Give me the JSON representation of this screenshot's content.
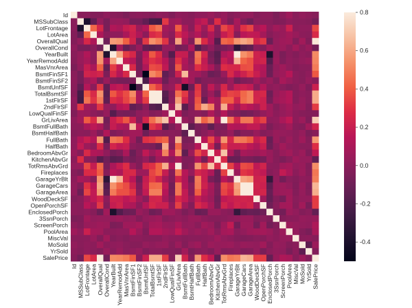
{
  "chart_data": {
    "type": "heatmap",
    "title": "",
    "xlabel": "",
    "ylabel": "",
    "colormap": "rocket",
    "color_range": [
      -0.5,
      0.8
    ],
    "colorbar_ticks": [
      "0.8",
      "0.6",
      "0.4",
      "0.2",
      "0.0",
      "-0.2",
      "-0.4"
    ],
    "colorbar_tick_values": [
      0.8,
      0.6,
      0.4,
      0.2,
      0.0,
      -0.2,
      -0.4
    ],
    "labels": [
      "Id",
      "MSSubClass",
      "LotFrontage",
      "LotArea",
      "OverallQual",
      "OverallCond",
      "YearBuilt",
      "YearRemodAdd",
      "MasVnrArea",
      "BsmtFinSF1",
      "BsmtFinSF2",
      "BsmtUnfSF",
      "TotalBsmtSF",
      "1stFlrSF",
      "2ndFlrSF",
      "LowQualFinSF",
      "GrLivArea",
      "BsmtFullBath",
      "BsmtHalfBath",
      "FullBath",
      "HalfBath",
      "BedroomAbvGr",
      "KitchenAbvGr",
      "TotRmsAbvGrd",
      "Fireplaces",
      "GarageYrBlt",
      "GarageCars",
      "GarageArea",
      "WoodDeckSF",
      "OpenPorchSF",
      "EnclosedPorch",
      "3SsnPorch",
      "ScreenPorch",
      "PoolArea",
      "MiscVal",
      "MoSold",
      "YrSold",
      "SalePrice"
    ],
    "symmetric": true,
    "upper_triangle": [
      [
        1,
        -0.01,
        -0.01,
        -0.03,
        -0.03,
        0.01,
        -0.01,
        -0.02,
        -0.05,
        -0.01,
        0.0,
        -0.01,
        -0.02,
        0.01,
        0.0,
        -0.04,
        0.01,
        0.0,
        -0.02,
        0.01,
        0.01,
        0.04,
        0.0,
        0.03,
        -0.02,
        0.0,
        0.02,
        0.02,
        -0.03,
        0.0,
        0.0,
        -0.05,
        0.0,
        0.06,
        -0.01,
        0.02,
        0.0,
        -0.02
      ],
      [
        1,
        -0.39,
        -0.14,
        0.03,
        -0.06,
        0.03,
        0.04,
        0.02,
        -0.07,
        -0.07,
        -0.14,
        -0.24,
        -0.25,
        0.31,
        0.05,
        0.07,
        0.0,
        0.0,
        0.13,
        0.18,
        -0.02,
        0.28,
        0.04,
        -0.05,
        0.09,
        -0.04,
        -0.1,
        -0.01,
        -0.01,
        -0.01,
        -0.04,
        -0.03,
        0.01,
        -0.01,
        -0.01,
        -0.02,
        -0.08
      ],
      [
        1,
        0.43,
        0.25,
        -0.06,
        0.12,
        0.09,
        0.19,
        0.23,
        0.05,
        0.13,
        0.39,
        0.46,
        0.08,
        0.04,
        0.4,
        0.1,
        -0.01,
        0.2,
        0.05,
        0.26,
        -0.01,
        0.35,
        0.27,
        0.07,
        0.29,
        0.34,
        0.09,
        0.15,
        0.01,
        0.07,
        0.04,
        0.21,
        0.0,
        0.01,
        0.01,
        0.35
      ],
      [
        1,
        0.11,
        -0.01,
        0.01,
        0.01,
        0.1,
        0.21,
        0.11,
        0.0,
        0.26,
        0.3,
        0.05,
        0.0,
        0.26,
        0.16,
        0.05,
        0.13,
        0.01,
        0.12,
        -0.02,
        0.19,
        0.27,
        -0.02,
        0.15,
        0.18,
        0.17,
        0.08,
        -0.02,
        0.02,
        0.04,
        0.08,
        0.04,
        0.0,
        -0.01,
        0.26
      ],
      [
        1,
        -0.09,
        0.57,
        0.55,
        0.41,
        0.24,
        -0.06,
        0.31,
        0.54,
        0.48,
        0.3,
        -0.03,
        0.59,
        0.11,
        -0.04,
        0.55,
        0.27,
        0.1,
        -0.18,
        0.43,
        0.4,
        0.55,
        0.6,
        0.56,
        0.24,
        0.31,
        -0.11,
        0.03,
        0.06,
        0.07,
        -0.03,
        0.07,
        -0.03,
        0.79
      ],
      [
        1,
        -0.38,
        0.07,
        -0.13,
        -0.05,
        0.04,
        -0.14,
        -0.17,
        -0.14,
        0.03,
        0.03,
        -0.08,
        -0.05,
        0.12,
        -0.19,
        -0.06,
        0.01,
        -0.09,
        -0.06,
        -0.02,
        -0.32,
        -0.19,
        -0.15,
        0.0,
        -0.03,
        0.07,
        0.03,
        0.05,
        0.0,
        0.07,
        0.0,
        0.04,
        -0.08
      ],
      [
        1,
        0.59,
        0.32,
        0.25,
        -0.05,
        0.15,
        0.39,
        0.28,
        0.01,
        -0.18,
        0.2,
        0.19,
        -0.04,
        0.47,
        0.24,
        -0.07,
        -0.17,
        0.1,
        0.15,
        0.83,
        0.54,
        0.48,
        0.22,
        0.19,
        -0.39,
        0.03,
        -0.05,
        0.0,
        -0.03,
        0.01,
        -0.01,
        0.52
      ],
      [
        1,
        0.18,
        0.13,
        -0.07,
        0.18,
        0.29,
        0.24,
        0.14,
        -0.06,
        0.29,
        0.12,
        -0.01,
        0.44,
        0.18,
        -0.04,
        -0.15,
        0.19,
        0.11,
        0.64,
        0.42,
        0.37,
        0.21,
        0.23,
        -0.19,
        0.05,
        -0.04,
        0.01,
        -0.01,
        0.02,
        0.04,
        0.51
      ],
      [
        1,
        0.26,
        -0.07,
        0.11,
        0.36,
        0.34,
        0.17,
        -0.07,
        0.39,
        0.09,
        0.03,
        0.28,
        0.2,
        0.1,
        -0.04,
        0.28,
        0.25,
        0.25,
        0.36,
        0.37,
        0.16,
        0.13,
        -0.11,
        0.02,
        0.06,
        0.01,
        -0.03,
        -0.01,
        -0.01,
        0.48
      ],
      [
        1,
        -0.05,
        -0.5,
        0.52,
        0.45,
        -0.14,
        -0.06,
        0.21,
        0.65,
        0.07,
        0.06,
        0.0,
        -0.11,
        -0.08,
        0.04,
        0.26,
        0.15,
        0.22,
        0.3,
        0.2,
        0.11,
        -0.1,
        0.03,
        0.06,
        0.14,
        0.0,
        -0.02,
        0.01,
        0.39
      ],
      [
        1,
        -0.21,
        0.1,
        0.1,
        -0.1,
        0.01,
        -0.01,
        0.16,
        0.07,
        -0.08,
        -0.03,
        -0.02,
        -0.04,
        -0.04,
        0.05,
        -0.09,
        -0.04,
        -0.02,
        0.07,
        0.0,
        0.04,
        -0.03,
        0.09,
        0.04,
        0.0,
        -0.02,
        0.03,
        -0.01
      ],
      [
        1,
        0.42,
        0.32,
        0.0,
        0.03,
        0.24,
        -0.42,
        -0.1,
        0.29,
        -0.04,
        0.17,
        0.03,
        0.25,
        0.05,
        0.19,
        0.21,
        0.18,
        -0.01,
        0.13,
        0.0,
        0.02,
        -0.01,
        -0.04,
        -0.02,
        0.03,
        -0.04,
        0.21
      ],
      [
        1,
        0.82,
        -0.17,
        -0.03,
        0.45,
        0.31,
        0.0,
        0.32,
        -0.05,
        0.05,
        -0.07,
        0.29,
        0.34,
        0.32,
        0.43,
        0.49,
        0.23,
        0.25,
        -0.1,
        0.04,
        0.08,
        0.13,
        -0.02,
        0.01,
        -0.01,
        0.61
      ],
      [
        1,
        -0.2,
        -0.01,
        0.57,
        0.24,
        0.0,
        0.38,
        -0.12,
        0.13,
        0.07,
        0.41,
        0.41,
        0.23,
        0.44,
        0.49,
        0.24,
        0.21,
        -0.07,
        0.06,
        0.09,
        0.13,
        -0.02,
        0.03,
        -0.01,
        0.61
      ],
      [
        1,
        0.06,
        0.69,
        -0.17,
        -0.02,
        0.42,
        0.61,
        0.5,
        0.06,
        0.62,
        0.19,
        0.07,
        0.18,
        0.14,
        0.09,
        0.21,
        0.06,
        -0.02,
        0.04,
        0.08,
        0.02,
        0.04,
        -0.03,
        0.32
      ],
      [
        1,
        0.13,
        -0.05,
        -0.01,
        0.0,
        -0.03,
        0.11,
        0.01,
        0.13,
        -0.02,
        -0.04,
        -0.09,
        -0.07,
        -0.03,
        0.02,
        0.06,
        0.0,
        0.03,
        0.06,
        0.0,
        -0.02,
        -0.03,
        -0.03
      ],
      [
        1,
        0.03,
        -0.02,
        0.63,
        0.42,
        0.52,
        0.1,
        0.83,
        0.46,
        0.23,
        0.47,
        0.47,
        0.25,
        0.33,
        0.01,
        0.02,
        0.1,
        0.17,
        0.0,
        0.05,
        -0.04,
        0.71
      ],
      [
        1,
        -0.15,
        -0.06,
        -0.03,
        -0.15,
        -0.04,
        -0.05,
        0.14,
        0.12,
        0.13,
        0.18,
        0.18,
        0.07,
        -0.05,
        0.0,
        0.02,
        0.07,
        -0.02,
        -0.03,
        0.07,
        0.23
      ],
      [
        1,
        -0.05,
        -0.01,
        0.05,
        -0.04,
        -0.02,
        0.03,
        -0.08,
        -0.02,
        -0.02,
        0.04,
        -0.03,
        -0.01,
        0.04,
        0.03,
        0.02,
        -0.01,
        0.03,
        -0.05,
        -0.02
      ],
      [
        1,
        0.14,
        0.36,
        0.13,
        0.55,
        0.24,
        0.48,
        0.47,
        0.41,
        0.19,
        0.26,
        -0.12,
        0.04,
        -0.01,
        0.05,
        -0.01,
        0.06,
        -0.02,
        0.56
      ],
      [
        1,
        0.23,
        -0.07,
        0.34,
        0.2,
        0.2,
        0.22,
        0.16,
        0.11,
        0.2,
        -0.1,
        0.0,
        0.07,
        0.02,
        0.0,
        -0.01,
        -0.01,
        0.28
      ],
      [
        1,
        0.2,
        0.68,
        0.11,
        -0.06,
        0.09,
        0.07,
        0.05,
        0.09,
        0.04,
        -0.02,
        0.04,
        0.07,
        0.01,
        0.05,
        -0.04,
        0.17
      ],
      [
        1,
        0.26,
        -0.12,
        -0.12,
        -0.05,
        -0.06,
        -0.09,
        -0.07,
        0.04,
        -0.02,
        -0.05,
        -0.01,
        0.06,
        0.03,
        0.03,
        -0.14
      ],
      [
        1,
        0.33,
        0.15,
        0.36,
        0.34,
        0.17,
        0.23,
        0.0,
        -0.01,
        0.06,
        0.08,
        0.02,
        0.04,
        -0.03,
        0.53
      ],
      [
        1,
        0.05,
        0.3,
        0.27,
        0.2,
        0.17,
        -0.02,
        0.01,
        0.18,
        0.1,
        0.0,
        0.05,
        -0.02,
        0.47
      ],
      [
        1,
        0.59,
        0.56,
        0.22,
        0.23,
        -0.3,
        0.02,
        -0.08,
        -0.01,
        -0.03,
        0.01,
        0.0,
        0.49
      ],
      [
        1,
        0.88,
        0.23,
        0.21,
        -0.15,
        0.04,
        0.05,
        0.02,
        -0.04,
        0.04,
        -0.04,
        0.64
      ],
      [
        1,
        0.22,
        0.24,
        -0.12,
        0.04,
        0.05,
        0.06,
        -0.03,
        0.03,
        -0.03,
        0.62
      ],
      [
        1,
        0.06,
        -0.13,
        -0.03,
        -0.07,
        0.07,
        -0.01,
        0.02,
        0.02,
        0.32
      ],
      [
        1,
        -0.09,
        -0.01,
        0.07,
        0.08,
        -0.02,
        0.07,
        -0.06,
        0.32
      ],
      [
        1,
        -0.04,
        -0.08,
        0.05,
        0.02,
        -0.03,
        -0.01,
        -0.13
      ],
      [
        1,
        -0.03,
        -0.01,
        0.0,
        0.03,
        0.02,
        0.04
      ],
      [
        1,
        0.05,
        0.03,
        0.02,
        0.01,
        0.11
      ],
      [
        1,
        0.03,
        -0.03,
        -0.06,
        0.09
      ],
      [
        1,
        -0.01,
        0.0,
        -0.02
      ],
      [
        1,
        -0.15,
        0.05
      ],
      [
        1,
        -0.03
      ],
      [
        1
      ]
    ],
    "grid": false,
    "legend": "colorbar-right"
  }
}
